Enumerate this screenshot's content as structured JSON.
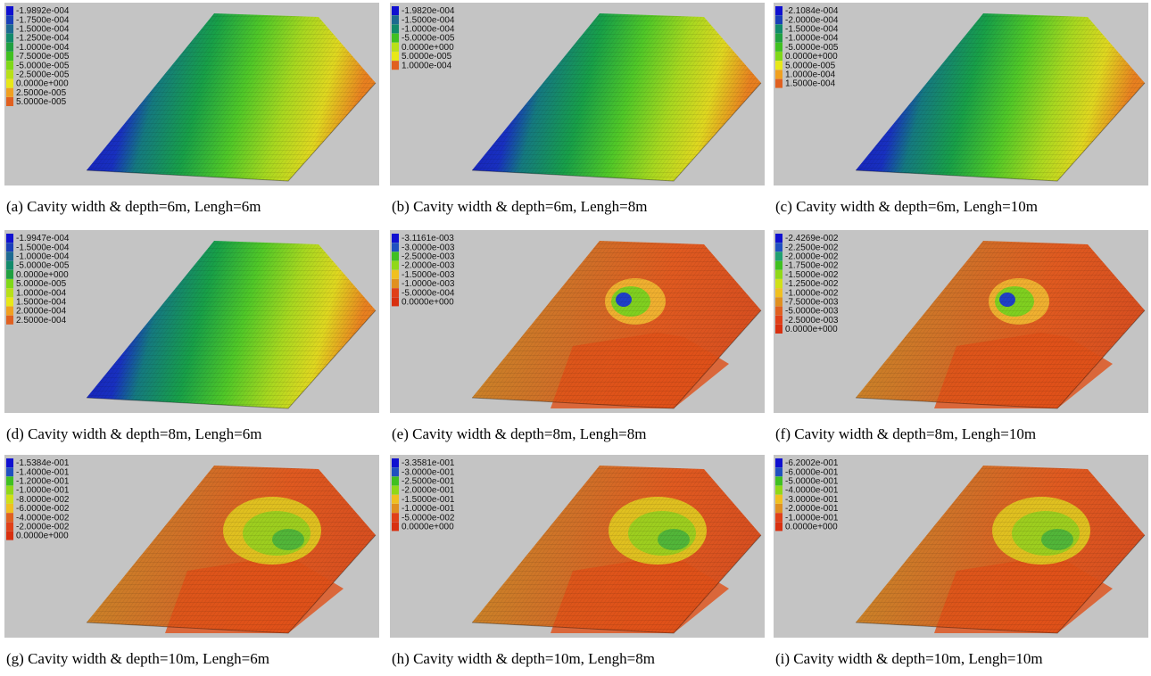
{
  "panels": [
    {
      "caption": "(a) Cavity width & depth=6m, Lengh=6m",
      "legend": [
        "-1.9892e-004",
        "-1.7500e-004",
        "-1.5000e-004",
        "-1.2500e-004",
        "-1.0000e-004",
        "-7.5000e-005",
        "-5.0000e-005",
        "-2.5000e-005",
        "0.0000e+000",
        "2.5000e-005",
        "5.0000e-005"
      ]
    },
    {
      "caption": "(b) Cavity width & depth=6m, Lengh=8m",
      "legend": [
        "-1.9820e-004",
        "-1.5000e-004",
        "-1.0000e-004",
        "-5.0000e-005",
        "0.0000e+000",
        "5.0000e-005",
        "1.0000e-004"
      ]
    },
    {
      "caption": "(c) Cavity width & depth=6m, Lengh=10m",
      "legend": [
        "-2.1084e-004",
        "-2.0000e-004",
        "-1.5000e-004",
        "-1.0000e-004",
        "-5.0000e-005",
        "0.0000e+000",
        "5.0000e-005",
        "1.0000e-004",
        "1.5000e-004"
      ]
    },
    {
      "caption": "(d) Cavity width & depth=8m, Lengh=6m",
      "legend": [
        "-1.9947e-004",
        "-1.5000e-004",
        "-1.0000e-004",
        "-5.0000e-005",
        "0.0000e+000",
        "5.0000e-005",
        "1.0000e-004",
        "1.5000e-004",
        "2.0000e-004",
        "2.5000e-004"
      ]
    },
    {
      "caption": "(e) Cavity width & depth=8m, Lengh=8m",
      "legend": [
        "-3.1161e-003",
        "-3.0000e-003",
        "-2.5000e-003",
        "-2.0000e-003",
        "-1.5000e-003",
        "-1.0000e-003",
        "-5.0000e-004",
        "0.0000e+000"
      ]
    },
    {
      "caption": "(f) Cavity width & depth=8m, Lengh=10m",
      "legend": [
        "-2.4269e-002",
        "-2.2500e-002",
        "-2.0000e-002",
        "-1.7500e-002",
        "-1.5000e-002",
        "-1.2500e-002",
        "-1.0000e-002",
        "-7.5000e-003",
        "-5.0000e-003",
        "-2.5000e-003",
        "0.0000e+000"
      ]
    },
    {
      "caption": "(g) Cavity width & depth=10m, Lengh=6m",
      "legend": [
        "-1.5384e-001",
        "-1.4000e-001",
        "-1.2000e-001",
        "-1.0000e-001",
        "-8.0000e-002",
        "-6.0000e-002",
        "-4.0000e-002",
        "-2.0000e-002",
        "0.0000e+000"
      ]
    },
    {
      "caption": "(h) Cavity width & depth=10m, Lengh=8m",
      "legend": [
        "-3.3581e-001",
        "-3.0000e-001",
        "-2.5000e-001",
        "-2.0000e-001",
        "-1.5000e-001",
        "-1.0000e-001",
        "-5.0000e-002",
        "0.0000e+000"
      ]
    },
    {
      "caption": "(i) Cavity width & depth=10m, Lengh=10m",
      "legend": [
        "-6.2002e-001",
        "-6.0000e-001",
        "-5.0000e-001",
        "-4.0000e-001",
        "-3.0000e-001",
        "-2.0000e-001",
        "-1.0000e-001",
        "0.0000e+000"
      ]
    }
  ]
}
